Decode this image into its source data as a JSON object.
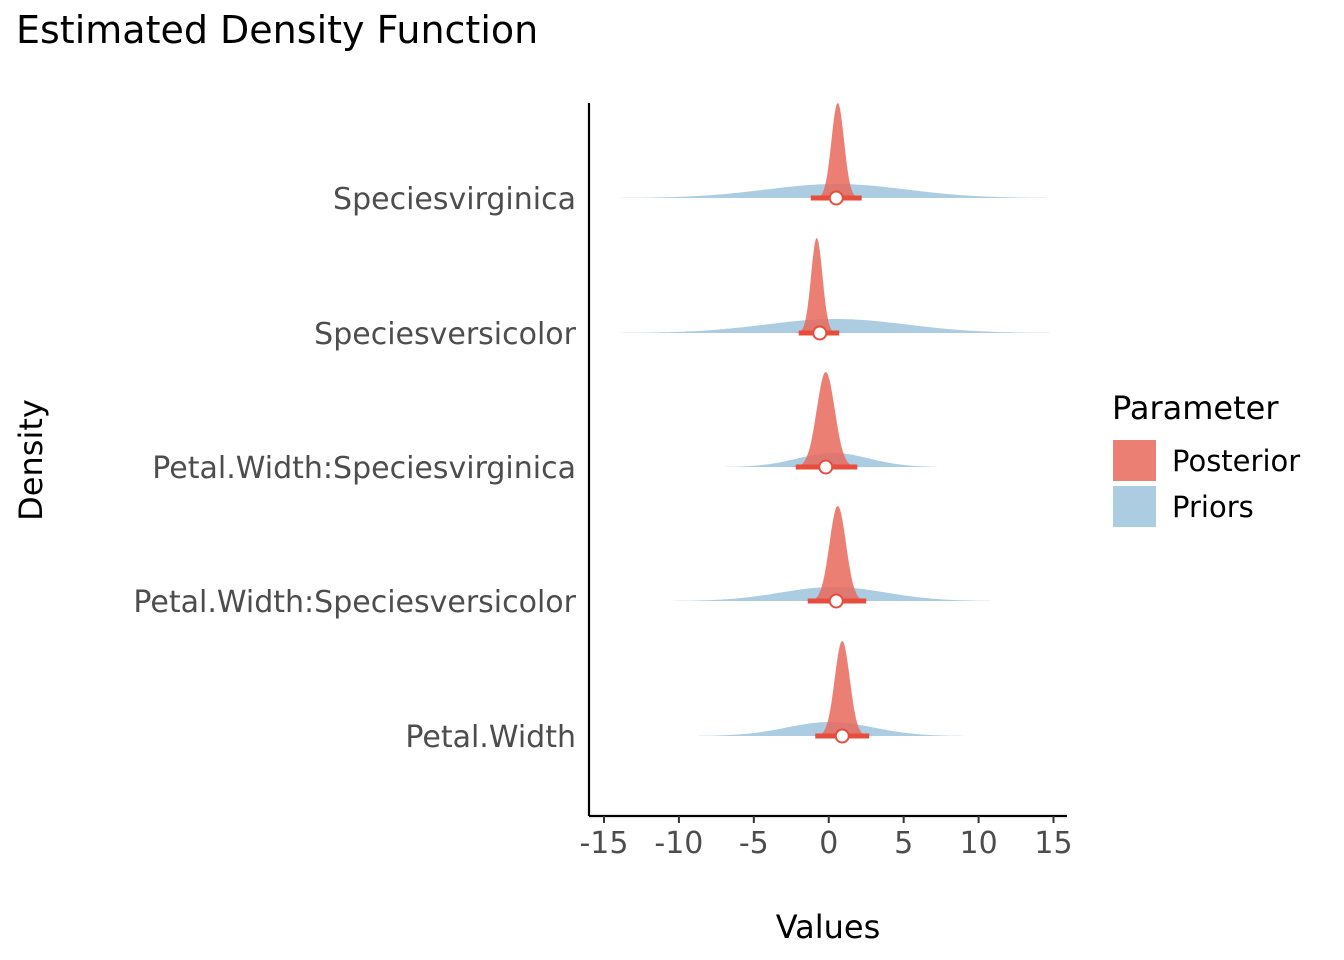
{
  "chart_data": {
    "type": "density-ridgeline",
    "title": "Estimated Density Function",
    "xlabel": "Values",
    "ylabel": "Density",
    "xlim": [
      -16,
      15.9
    ],
    "x_ticks": [
      -15,
      -10,
      -5,
      0,
      5,
      10,
      15
    ],
    "x_tick_labels": [
      "-15",
      "-10",
      "-5",
      "0",
      "5",
      "10",
      "15"
    ],
    "grid": false,
    "legend": {
      "title": "Parameter",
      "position": "right",
      "entries": [
        {
          "label": "Posterior",
          "color": "#e8695c"
        },
        {
          "label": "Priors",
          "color": "#7fb0d3"
        }
      ]
    },
    "colors": {
      "posterior_fill": "#e8695c",
      "prior_fill": "#7fb0d3",
      "interval": "#e74c3c",
      "axis": "#000000"
    },
    "categories": [
      {
        "name": "Speciesvirginica",
        "prior": {
          "mean": 0.5,
          "sd": 4.7,
          "min": -14,
          "max": 14.5
        },
        "posterior": {
          "mean": 0.6,
          "sd": 0.42,
          "median": 0.5,
          "ci": [
            -1.2,
            2.2
          ]
        }
      },
      {
        "name": "Speciesversicolor",
        "prior": {
          "mean": 0.5,
          "sd": 4.7,
          "min": -14,
          "max": 14.8
        },
        "posterior": {
          "mean": -0.8,
          "sd": 0.38,
          "median": -0.6,
          "ci": [
            -2.0,
            0.7
          ]
        }
      },
      {
        "name": "Petal.Width:Speciesvirginica",
        "prior": {
          "mean": 0.3,
          "sd": 2.4,
          "min": -6.9,
          "max": 7.2
        },
        "posterior": {
          "mean": -0.2,
          "sd": 0.6,
          "median": -0.2,
          "ci": [
            -2.2,
            1.9
          ]
        }
      },
      {
        "name": "Petal.Width:Speciesversicolor",
        "prior": {
          "mean": 0.3,
          "sd": 3.5,
          "min": -10.5,
          "max": 10.8
        },
        "posterior": {
          "mean": 0.6,
          "sd": 0.55,
          "median": 0.5,
          "ci": [
            -1.4,
            2.5
          ]
        }
      },
      {
        "name": "Petal.Width",
        "prior": {
          "mean": 0.1,
          "sd": 2.9,
          "min": -8.7,
          "max": 9.0
        },
        "posterior": {
          "mean": 0.9,
          "sd": 0.5,
          "median": 0.9,
          "ci": [
            -0.9,
            2.7
          ]
        }
      }
    ]
  }
}
